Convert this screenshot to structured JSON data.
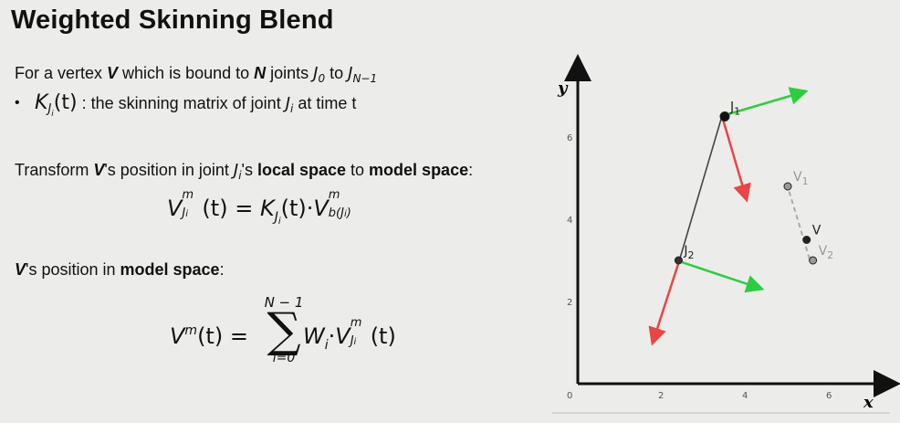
{
  "title": "Weighted Skinning Blend",
  "intro": {
    "prefix": "For a vertex ",
    "vertex": "V",
    "mid": " which is bound to ",
    "n": "N",
    "joints": " joints ",
    "j0": "J",
    "j0_sub": "0",
    "to": " to ",
    "jn": "J",
    "jn_sub": "N−1"
  },
  "bullet": {
    "symbol": "•",
    "k": "K",
    "k_sub": "J",
    "k_subsub": "i",
    "t": "(t)",
    "text": " : the skinning matrix of joint ",
    "j": "J",
    "j_sub": "i",
    "tail": " at time t"
  },
  "transform": {
    "prefix": "Transform ",
    "v": "V",
    "mid1": "'s position in joint ",
    "j": "J",
    "j_sub": "i",
    "mid2": "'s ",
    "local": "local space",
    "to": " to ",
    "model": "model space",
    "colon": ":"
  },
  "eq1": {
    "lhs": "V",
    "lhs_sup": "m",
    "lhs_sub": "J",
    "lhs_subsub": "i",
    "t": "(t) = ",
    "k": "K",
    "k_sub": "J",
    "k_subsub": "i",
    "t2": "(t)·",
    "v": "V",
    "v_sup": "m",
    "v_sub": "b(J",
    "v_subsub": "i",
    "v_close": ")"
  },
  "position": {
    "v": "V",
    "mid": "'s position in ",
    "model": "model space",
    "colon": ":"
  },
  "eq2": {
    "lhs": "V",
    "lhs_sup": "m",
    "t": "(t) = ",
    "sum_top": "N − 1",
    "sum_sym": "∑",
    "sum_bot": "i=0",
    "w": "W",
    "w_sub": "i",
    "dot": "·",
    "v": "V",
    "v_sup": "m",
    "v_sub": "J",
    "v_subsub": "i",
    "t2": "(t)"
  },
  "chart_data": {
    "type": "diagram",
    "xlabel": "x",
    "ylabel": "y",
    "x_ticks": [
      "0",
      "2",
      "4",
      "6"
    ],
    "y_ticks": [
      "2",
      "4",
      "6"
    ],
    "xlim": [
      0,
      7.5
    ],
    "ylim": [
      0,
      7.5
    ],
    "points": [
      {
        "name": "J1",
        "label": "J",
        "label_sub": "1",
        "x": 3.5,
        "y": 6.5,
        "color": "#111111"
      },
      {
        "name": "J2",
        "label": "J",
        "label_sub": "2",
        "x": 2.4,
        "y": 3.0,
        "color": "#333333"
      },
      {
        "name": "V1",
        "label": "V",
        "label_sub": "1",
        "x": 5.0,
        "y": 4.8,
        "color": "#888888"
      },
      {
        "name": "V",
        "label": "V",
        "label_sub": "",
        "x": 5.45,
        "y": 3.5,
        "color": "#222222"
      },
      {
        "name": "V2",
        "label": "V",
        "label_sub": "2",
        "x": 5.6,
        "y": 3.0,
        "color": "#888888"
      }
    ],
    "colors": {
      "bone": "#444444",
      "x_axis_arrow": "#2ecc40",
      "y_axis_arrow": "#e84545",
      "dashed": "#aaaaaa"
    }
  }
}
